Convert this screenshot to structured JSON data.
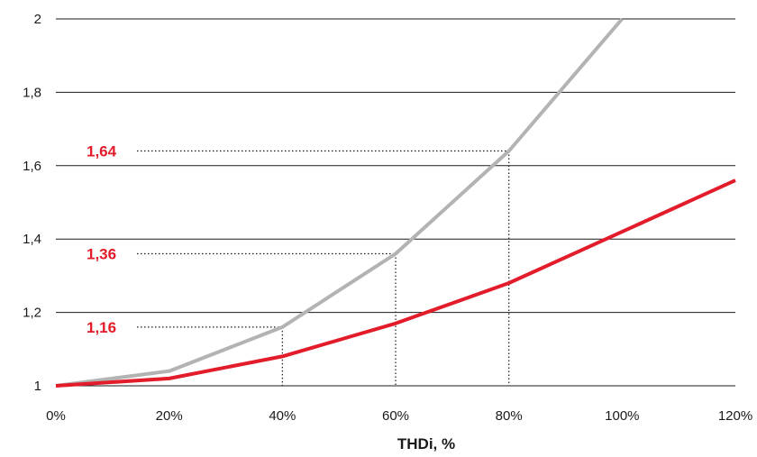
{
  "chart_data": {
    "type": "line",
    "xlabel": "THDi, %",
    "ylabel": "",
    "xlim": [
      0,
      120
    ],
    "ylim": [
      1,
      2
    ],
    "x_ticks": [
      "0%",
      "20%",
      "40%",
      "60%",
      "80%",
      "100%",
      "120%"
    ],
    "y_ticks": [
      "1",
      "1,2",
      "1,4",
      "1,6",
      "1,8",
      "2"
    ],
    "grid": "horizontal",
    "series": [
      {
        "color": "#b3b3b3",
        "x": [
          0,
          20,
          40,
          60,
          80,
          100
        ],
        "y": [
          1.0,
          1.04,
          1.16,
          1.36,
          1.64,
          2.0
        ]
      },
      {
        "color": "#e21c2a",
        "x": [
          0,
          20,
          40,
          60,
          80,
          100,
          120
        ],
        "y": [
          1.0,
          1.02,
          1.08,
          1.17,
          1.28,
          1.42,
          1.56
        ]
      }
    ],
    "annotations": [
      {
        "label": "1,16",
        "x": 40,
        "y": 1.16
      },
      {
        "label": "1,36",
        "x": 60,
        "y": 1.36
      },
      {
        "label": "1,64",
        "x": 80,
        "y": 1.64
      }
    ],
    "annotation_color": "#e21c2a"
  }
}
